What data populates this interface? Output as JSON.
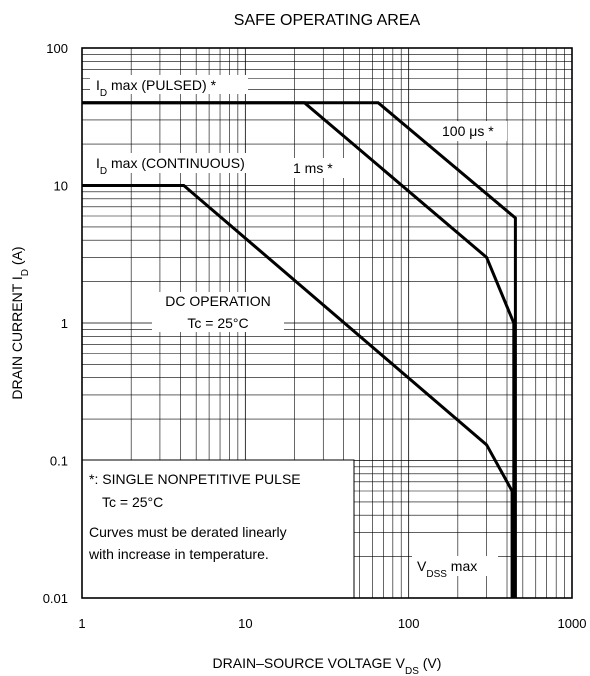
{
  "chart_data": {
    "type": "line",
    "title": "SAFE OPERATING AREA",
    "xlabel": {
      "main": "DRAIN–SOURCE VOLTAGE",
      "sym": "V",
      "sub": "DS",
      "unit": "(V)"
    },
    "ylabel": {
      "main": "DRAIN CURRENT",
      "sym": "I",
      "sub": "D",
      "unit": "(A)"
    },
    "x_scale": "log",
    "y_scale": "log",
    "xlim": [
      1,
      1000
    ],
    "ylim": [
      0.01,
      100
    ],
    "x_ticks": [
      {
        "value": 1,
        "label": "1"
      },
      {
        "value": 10,
        "label": "10"
      },
      {
        "value": 100,
        "label": "100"
      },
      {
        "value": 1000,
        "label": "1000"
      }
    ],
    "y_ticks": [
      {
        "value": 100,
        "label": "100"
      },
      {
        "value": 10,
        "label": "10"
      },
      {
        "value": 1,
        "label": "1"
      },
      {
        "value": 0.1,
        "label": "0.1"
      },
      {
        "value": 0.01,
        "label": "0.01"
      }
    ],
    "grid": true,
    "series": [
      {
        "key": "pulse_100us",
        "points": [
          [
            1,
            40
          ],
          [
            65,
            40
          ],
          [
            450,
            5.8
          ],
          [
            450,
            0.01
          ]
        ]
      },
      {
        "key": "pulse_1ms",
        "points": [
          [
            1,
            40
          ],
          [
            23,
            40
          ],
          [
            300,
            3.0
          ],
          [
            440,
            1.0
          ],
          [
            440,
            0.01
          ]
        ]
      },
      {
        "key": "dc",
        "points": [
          [
            1,
            10
          ],
          [
            4.2,
            10
          ],
          [
            300,
            0.13
          ],
          [
            430,
            0.06
          ],
          [
            430,
            0.01
          ]
        ]
      }
    ],
    "annotations": {
      "id_pulsed": {
        "sym": "I",
        "sub": "D",
        "text": " max (PULSED) *"
      },
      "id_cont": {
        "sym": "I",
        "sub": "D",
        "text": " max (CONTINUOUS)"
      },
      "us100": {
        "text": "100 μs *"
      },
      "ms1": {
        "text": "1 ms *"
      },
      "dc_line1": {
        "text": "DC OPERATION"
      },
      "dc_line2": {
        "text": "Tc = 25°C"
      },
      "vdss": {
        "sym": "V",
        "sub": "DSS",
        "text": " max"
      }
    },
    "note": {
      "line1": "*: SINGLE NONPETITIVE PULSE",
      "line2": "Tc = 25°C",
      "line3": "Curves must be derated linearly",
      "line4": "with increase in temperature."
    }
  }
}
